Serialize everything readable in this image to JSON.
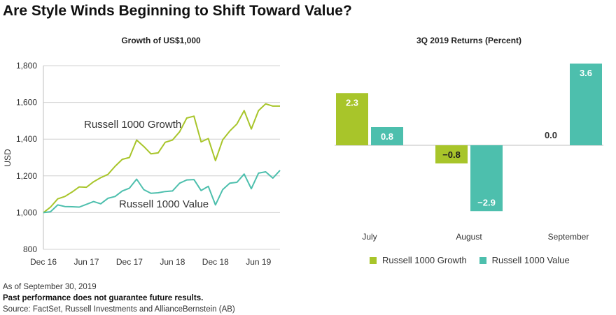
{
  "title": "Are Style Winds Beginning to Shift Toward Value?",
  "colors": {
    "growth": "#a8c52a",
    "value": "#4dbfad",
    "axis": "#bfbfbf",
    "text": "#333333"
  },
  "chart_data": [
    {
      "type": "line",
      "title": "Growth of US$1,000",
      "ylabel": "USD",
      "ylim": [
        800,
        1800
      ],
      "yticks": [
        800,
        1000,
        1200,
        1400,
        1600,
        1800
      ],
      "ytick_labels": [
        "800",
        "1,000",
        "1,200",
        "1,400",
        "1,600",
        "1,800"
      ],
      "xlim": [
        0,
        33
      ],
      "xticks": [
        0,
        6,
        12,
        18,
        24,
        30
      ],
      "xtick_labels": [
        "Dec 16",
        "Jun 17",
        "Dec 17",
        "Jun 18",
        "Dec 18",
        "Jun 19"
      ],
      "grid": "horizontal",
      "series": [
        {
          "name": "Russell 1000 Growth",
          "color_key": "growth",
          "x": [
            0,
            1,
            2,
            3,
            4,
            5,
            6,
            7,
            8,
            9,
            10,
            11,
            12,
            13,
            14,
            15,
            16,
            17,
            18,
            19,
            20,
            21,
            22,
            23,
            24,
            25,
            26,
            27,
            28,
            29,
            30,
            31,
            32,
            33
          ],
          "values": [
            1000,
            1030,
            1075,
            1088,
            1112,
            1140,
            1138,
            1168,
            1190,
            1208,
            1252,
            1290,
            1300,
            1395,
            1360,
            1320,
            1325,
            1383,
            1395,
            1440,
            1515,
            1525,
            1385,
            1403,
            1283,
            1396,
            1444,
            1483,
            1555,
            1455,
            1555,
            1592,
            1580,
            1580
          ]
        },
        {
          "name": "Russell 1000 Value",
          "color_key": "value",
          "x": [
            0,
            1,
            2,
            3,
            4,
            5,
            6,
            7,
            8,
            9,
            10,
            11,
            12,
            13,
            14,
            15,
            16,
            17,
            18,
            19,
            20,
            21,
            22,
            23,
            24,
            25,
            26,
            27,
            28,
            29,
            30,
            31,
            32,
            33
          ],
          "values": [
            1000,
            1005,
            1042,
            1033,
            1032,
            1030,
            1045,
            1060,
            1048,
            1078,
            1088,
            1118,
            1133,
            1182,
            1125,
            1105,
            1108,
            1115,
            1118,
            1160,
            1178,
            1180,
            1120,
            1143,
            1042,
            1125,
            1160,
            1165,
            1210,
            1130,
            1215,
            1222,
            1188,
            1230
          ]
        }
      ],
      "annotations": [
        "Russell 1000 Growth",
        "Russell 1000 Value"
      ]
    },
    {
      "type": "bar",
      "title": "3Q 2019 Returns (Percent)",
      "categories": [
        "July",
        "August",
        "September"
      ],
      "series": [
        {
          "name": "Russell 1000 Growth",
          "color_key": "growth",
          "values": [
            2.3,
            -0.8,
            0.0
          ],
          "labels": [
            "2.3",
            "−0.8",
            "0.0"
          ]
        },
        {
          "name": "Russell 1000 Value",
          "color_key": "value",
          "values": [
            0.8,
            -2.9,
            3.6
          ],
          "labels": [
            "0.8",
            "−2.9",
            "3.6"
          ]
        }
      ],
      "legend": "bottom",
      "legend_labels": [
        "Russell 1000 Growth",
        "Russell 1000 Value"
      ]
    }
  ],
  "notes": {
    "as_of": "As of September 30, 2019",
    "disclaimer": "Past performance does not guarantee future results.",
    "source": "Source: FactSet, Russell Investments and AllianceBernstein (AB)"
  }
}
